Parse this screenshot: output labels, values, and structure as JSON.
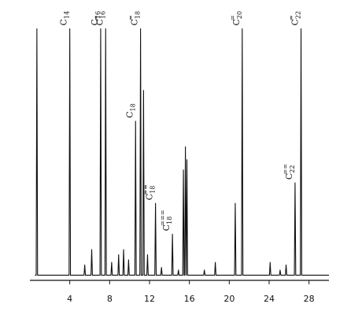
{
  "chart_data": {
    "type": "line",
    "title": "",
    "xlabel": "",
    "ylabel": "",
    "grid": false,
    "xlim": [
      0,
      30
    ],
    "ylim": [
      0,
      100
    ],
    "x_ticks": [
      4,
      8,
      12,
      16,
      20,
      24,
      28
    ],
    "x_tick_labels": [
      "4",
      "8",
      "12",
      "16",
      "20",
      "24",
      "28"
    ],
    "baseline": 2,
    "peaks": [
      {
        "x": 0.7,
        "height": 98,
        "label": ""
      },
      {
        "x": 4.0,
        "height": 98,
        "label": "C14"
      },
      {
        "x": 5.5,
        "height": 6,
        "label": ""
      },
      {
        "x": 6.2,
        "height": 12,
        "label": ""
      },
      {
        "x": 7.1,
        "height": 98,
        "label": "C16"
      },
      {
        "x": 7.6,
        "height": 98,
        "label": "C16="
      },
      {
        "x": 8.2,
        "height": 7,
        "label": ""
      },
      {
        "x": 8.9,
        "height": 10,
        "label": ""
      },
      {
        "x": 9.4,
        "height": 12,
        "label": ""
      },
      {
        "x": 9.9,
        "height": 8,
        "label": ""
      },
      {
        "x": 10.6,
        "height": 62,
        "label": "C18"
      },
      {
        "x": 11.1,
        "height": 98,
        "label": "C18="
      },
      {
        "x": 11.4,
        "height": 74,
        "label": ""
      },
      {
        "x": 11.8,
        "height": 10,
        "label": ""
      },
      {
        "x": 12.6,
        "height": 30,
        "label": "C18=="
      },
      {
        "x": 13.2,
        "height": 5,
        "label": ""
      },
      {
        "x": 14.3,
        "height": 18,
        "label": "C18==="
      },
      {
        "x": 14.9,
        "height": 4,
        "label": ""
      },
      {
        "x": 15.4,
        "height": 43,
        "label": ""
      },
      {
        "x": 15.6,
        "height": 52,
        "label": ""
      },
      {
        "x": 15.75,
        "height": 47,
        "label": ""
      },
      {
        "x": 17.5,
        "height": 4,
        "label": ""
      },
      {
        "x": 18.6,
        "height": 7,
        "label": ""
      },
      {
        "x": 20.6,
        "height": 30,
        "label": ""
      },
      {
        "x": 21.3,
        "height": 98,
        "label": "C20="
      },
      {
        "x": 24.1,
        "height": 7,
        "label": ""
      },
      {
        "x": 25.1,
        "height": 4,
        "label": ""
      },
      {
        "x": 25.7,
        "height": 6,
        "label": ""
      },
      {
        "x": 26.6,
        "height": 38,
        "label": "C22=="
      },
      {
        "x": 27.2,
        "height": 98,
        "label": "C22="
      }
    ],
    "labels": [
      {
        "peak": "C14",
        "text": "C",
        "sub": "14",
        "sup": ""
      },
      {
        "peak": "C16",
        "text": "C",
        "sub": "16",
        "sup": ""
      },
      {
        "peak": "C16=",
        "text": "C",
        "sub": "16",
        "sup": "="
      },
      {
        "peak": "C18",
        "text": "C",
        "sub": "18",
        "sup": ""
      },
      {
        "peak": "C18=",
        "text": "C",
        "sub": "18",
        "sup": "="
      },
      {
        "peak": "C18==",
        "text": "C",
        "sub": "18",
        "sup": "=="
      },
      {
        "peak": "C18===",
        "text": "C",
        "sub": "18",
        "sup": "==="
      },
      {
        "peak": "C20=",
        "text": "C",
        "sub": "20",
        "sup": "="
      },
      {
        "peak": "C22==",
        "text": "C",
        "sub": "22",
        "sup": "=="
      },
      {
        "peak": "C22=",
        "text": "C",
        "sub": "22",
        "sup": "="
      }
    ]
  }
}
